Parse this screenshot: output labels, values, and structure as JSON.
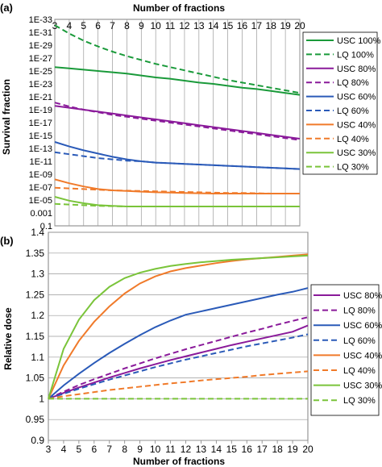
{
  "panel_labels": [
    "(a)",
    "(b)"
  ],
  "chart_data": [
    {
      "type": "line",
      "panel": "(a)",
      "xlabel": "Number of fractions",
      "xlabel_position": "top",
      "ylabel": "Survival fraction",
      "x": [
        3,
        4,
        5,
        6,
        7,
        8,
        9,
        10,
        11,
        12,
        13,
        14,
        15,
        16,
        17,
        18,
        19,
        20
      ],
      "y_scale": "log",
      "xlim": [
        3,
        20
      ],
      "ylim_exponent": [
        -33,
        -1
      ],
      "y_tick_labels": [
        "0.1",
        "0.001",
        "1E-05",
        "1E-07",
        "1E-09",
        "1E-11",
        "1E-13",
        "1E-15",
        "1E-17",
        "1E-19",
        "1E-21",
        "1E-23",
        "1E-25",
        "1E-27",
        "1E-29",
        "1E-31",
        "1E-33"
      ],
      "y_tick_exponents": [
        -1,
        -3,
        -5,
        -7,
        -9,
        -11,
        -13,
        -15,
        -17,
        -19,
        -21,
        -23,
        -25,
        -27,
        -29,
        -31,
        -33
      ],
      "grid": true,
      "legend_position": "right",
      "series": [
        {
          "name": "USC 100%",
          "color": "#1a9a3a",
          "dash": "solid",
          "log10": [
            -25.6,
            -25.4,
            -25.2,
            -25.0,
            -24.8,
            -24.6,
            -24.3,
            -24.0,
            -23.8,
            -23.5,
            -23.2,
            -23.0,
            -22.7,
            -22.4,
            -22.2,
            -21.9,
            -21.6,
            -21.3
          ]
        },
        {
          "name": "LQ 100%",
          "color": "#1a9a3a",
          "dash": "dashed",
          "log10": [
            -32.1,
            -30.8,
            -29.7,
            -28.8,
            -28.0,
            -27.3,
            -26.7,
            -26.1,
            -25.6,
            -25.1,
            -24.6,
            -24.1,
            -23.6,
            -23.2,
            -22.8,
            -22.4,
            -22.0,
            -21.6
          ]
        },
        {
          "name": "USC 80%",
          "color": "#8a1a9a",
          "dash": "solid",
          "log10": [
            -19.6,
            -19.3,
            -19.0,
            -18.7,
            -18.4,
            -18.1,
            -17.8,
            -17.5,
            -17.2,
            -16.9,
            -16.6,
            -16.3,
            -16.0,
            -15.7,
            -15.4,
            -15.1,
            -14.8,
            -14.5
          ]
        },
        {
          "name": "LQ 80%",
          "color": "#8a1a9a",
          "dash": "dashed",
          "log10": [
            -20.1,
            -19.5,
            -19.0,
            -18.6,
            -18.2,
            -17.9,
            -17.6,
            -17.3,
            -17.0,
            -16.7,
            -16.4,
            -16.1,
            -15.8,
            -15.5,
            -15.2,
            -14.9,
            -14.6,
            -14.3
          ]
        },
        {
          "name": "USC 60%",
          "color": "#2a5ab8",
          "dash": "solid",
          "log10": [
            -14.0,
            -13.3,
            -12.7,
            -12.2,
            -11.7,
            -11.3,
            -11.0,
            -10.8,
            -10.7,
            -10.6,
            -10.5,
            -10.4,
            -10.3,
            -10.2,
            -10.1,
            -10.0,
            -9.9,
            -9.8
          ]
        },
        {
          "name": "LQ 60%",
          "color": "#2a5ab8",
          "dash": "dashed",
          "log10": [
            -12.4,
            -12.1,
            -11.8,
            -11.5,
            -11.3,
            -11.1,
            -11.0,
            -10.8,
            -10.7,
            -10.6,
            -10.5,
            -10.4,
            -10.3,
            -10.2,
            -10.1,
            -10.0,
            -9.9,
            -9.8
          ]
        },
        {
          "name": "USC 40%",
          "color": "#f07a2a",
          "dash": "solid",
          "log10": [
            -8.2,
            -7.6,
            -7.1,
            -6.7,
            -6.5,
            -6.4,
            -6.3,
            -6.2,
            -6.15,
            -6.1,
            -6.05,
            -6.0,
            -6.0,
            -6.0,
            -6.0,
            -6.0,
            -6.0,
            -6.0
          ]
        },
        {
          "name": "LQ 40%",
          "color": "#f07a2a",
          "dash": "dashed",
          "log10": [
            -6.9,
            -6.8,
            -6.7,
            -6.6,
            -6.5,
            -6.45,
            -6.4,
            -6.35,
            -6.3,
            -6.25,
            -6.2,
            -6.15,
            -6.1,
            -6.1,
            -6.05,
            -6.0,
            -6.0,
            -6.0
          ]
        },
        {
          "name": "USC 30%",
          "color": "#7ac43a",
          "dash": "solid",
          "log10": [
            -5.5,
            -4.9,
            -4.5,
            -4.2,
            -4.1,
            -4.0,
            -4.0,
            -4.0,
            -4.0,
            -4.0,
            -4.0,
            -4.0,
            -4.0,
            -4.0,
            -4.0,
            -4.0,
            -4.0,
            -4.0
          ]
        },
        {
          "name": "LQ 30%",
          "color": "#7ac43a",
          "dash": "dashed",
          "log10": [
            -4.4,
            -4.3,
            -4.2,
            -4.1,
            -4.05,
            -4.0,
            -4.0,
            -4.0,
            -4.0,
            -4.0,
            -4.0,
            -4.0,
            -4.0,
            -4.0,
            -4.0,
            -4.0,
            -4.0,
            -4.0
          ]
        }
      ]
    },
    {
      "type": "line",
      "panel": "(b)",
      "xlabel": "Number of fractions",
      "ylabel": "Relative dose",
      "x": [
        3,
        4,
        5,
        6,
        7,
        8,
        9,
        10,
        11,
        12,
        13,
        14,
        15,
        16,
        17,
        18,
        19,
        20
      ],
      "xlim": [
        3,
        20
      ],
      "ylim": [
        0.9,
        1.4
      ],
      "y_ticks": [
        "0.9",
        "0.95",
        "1",
        "1.05",
        "1.1",
        "1.15",
        "1.2",
        "1.25",
        "1.3",
        "1.35",
        "1.4"
      ],
      "y_tick_values": [
        0.9,
        0.95,
        1.0,
        1.05,
        1.1,
        1.15,
        1.2,
        1.25,
        1.3,
        1.35,
        1.4
      ],
      "grid": true,
      "legend_position": "right",
      "series": [
        {
          "name": "USC 80%",
          "color": "#8a1a9a",
          "dash": "solid",
          "values": [
            1.0,
            1.014,
            1.027,
            1.039,
            1.051,
            1.062,
            1.073,
            1.083,
            1.093,
            1.102,
            1.111,
            1.12,
            1.129,
            1.137,
            1.145,
            1.153,
            1.161,
            1.176
          ]
        },
        {
          "name": "LQ 80%",
          "color": "#8a1a9a",
          "dash": "dashed",
          "values": [
            1.0,
            1.017,
            1.033,
            1.047,
            1.06,
            1.073,
            1.085,
            1.097,
            1.108,
            1.119,
            1.129,
            1.139,
            1.149,
            1.159,
            1.168,
            1.178,
            1.187,
            1.196
          ]
        },
        {
          "name": "USC 60%",
          "color": "#2a5ab8",
          "dash": "solid",
          "values": [
            1.0,
            1.032,
            1.06,
            1.086,
            1.11,
            1.132,
            1.153,
            1.172,
            1.188,
            1.202,
            1.21,
            1.218,
            1.226,
            1.234,
            1.242,
            1.25,
            1.257,
            1.266
          ]
        },
        {
          "name": "LQ 60%",
          "color": "#2a5ab8",
          "dash": "dashed",
          "values": [
            1.0,
            1.012,
            1.024,
            1.035,
            1.046,
            1.056,
            1.066,
            1.076,
            1.085,
            1.094,
            1.102,
            1.11,
            1.118,
            1.126,
            1.133,
            1.14,
            1.147,
            1.155
          ]
        },
        {
          "name": "USC 40%",
          "color": "#f07a2a",
          "dash": "solid",
          "values": [
            1.0,
            1.08,
            1.139,
            1.185,
            1.222,
            1.253,
            1.277,
            1.294,
            1.306,
            1.314,
            1.32,
            1.326,
            1.331,
            1.335,
            1.338,
            1.341,
            1.344,
            1.347
          ]
        },
        {
          "name": "LQ 40%",
          "color": "#f07a2a",
          "dash": "dashed",
          "values": [
            1.0,
            1.006,
            1.011,
            1.016,
            1.021,
            1.025,
            1.029,
            1.033,
            1.037,
            1.04,
            1.044,
            1.047,
            1.05,
            1.053,
            1.057,
            1.06,
            1.063,
            1.066
          ]
        },
        {
          "name": "USC 30%",
          "color": "#7ac43a",
          "dash": "solid",
          "values": [
            1.0,
            1.12,
            1.19,
            1.237,
            1.269,
            1.29,
            1.303,
            1.312,
            1.319,
            1.324,
            1.328,
            1.331,
            1.334,
            1.336,
            1.338,
            1.34,
            1.342,
            1.344
          ]
        },
        {
          "name": "LQ 30%",
          "color": "#7ac43a",
          "dash": "dashed",
          "values": [
            1.0,
            1.0,
            1.0,
            1.0,
            1.0,
            1.0,
            1.0,
            1.0,
            1.0,
            1.0,
            1.0,
            1.0,
            1.0,
            1.0,
            1.0,
            1.0,
            1.0,
            1.0
          ]
        }
      ]
    }
  ]
}
